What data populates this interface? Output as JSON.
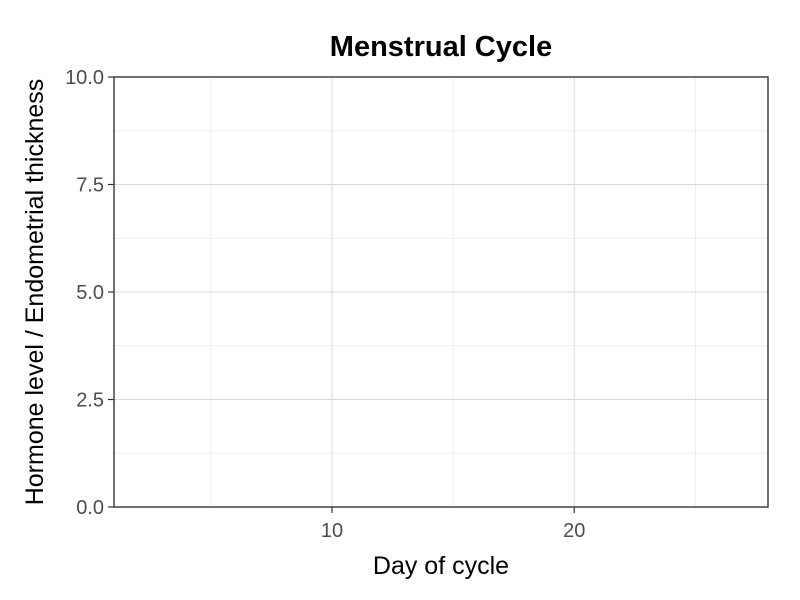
{
  "chart_data": {
    "type": "line",
    "title": "Menstrual Cycle",
    "xlabel": "Day of cycle",
    "ylabel": "Hormone level / Endometrial thickness",
    "xlim": [
      1,
      28
    ],
    "ylim": [
      0,
      10
    ],
    "x_major_ticks": [
      10,
      20
    ],
    "x_minor_ticks": [
      5,
      15,
      25
    ],
    "y_major_ticks": [
      0,
      2.5,
      5,
      7.5,
      10
    ],
    "y_minor_ticks": [
      1.25,
      3.75,
      6.25,
      8.75
    ],
    "y_tick_labels": [
      "0.0",
      "2.5",
      "5.0",
      "7.5",
      "10.0"
    ],
    "x_tick_labels": [
      "10",
      "20"
    ],
    "grid": true,
    "series": []
  }
}
